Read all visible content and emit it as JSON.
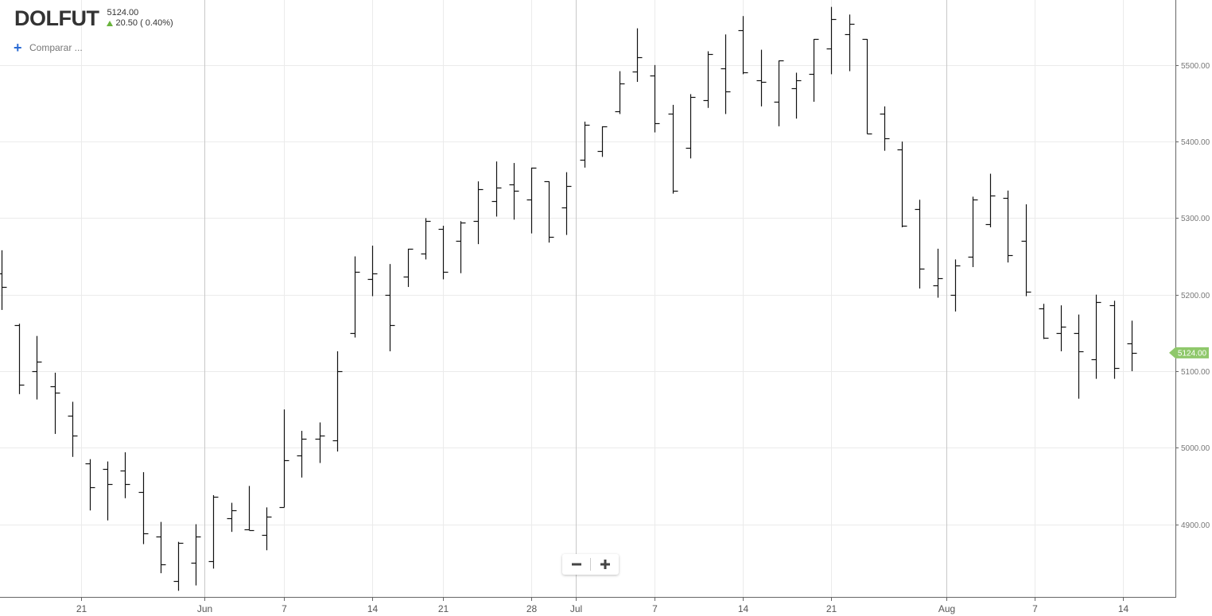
{
  "header": {
    "symbol": "DOLFUT",
    "last_price": "5124.00",
    "change": "20.50 ( 0.40%)",
    "change_direction_icon": "up-arrow-icon",
    "change_color": "#69b33c"
  },
  "compare": {
    "icon": "plus-icon",
    "label": "Comparar ..."
  },
  "zoom": {
    "minus_icon": "minus-icon",
    "plus_icon": "plus-icon"
  },
  "current_price_tag": {
    "label": "5124.00",
    "value": 5124,
    "color": "#8fc86b"
  },
  "chart_data": {
    "type": "ohlc",
    "title": "",
    "xlabel": "",
    "ylabel": "",
    "grid": true,
    "ylim": [
      4805,
      5585
    ],
    "y_ticks": [
      {
        "value": 4900,
        "label": "4900.00"
      },
      {
        "value": 5000,
        "label": "5000.00"
      },
      {
        "value": 5100,
        "label": "5100.00"
      },
      {
        "value": 5200,
        "label": "5200.00"
      },
      {
        "value": 5300,
        "label": "5300.00"
      },
      {
        "value": 5400,
        "label": "5400.00"
      },
      {
        "value": 5500,
        "label": "5500.00"
      }
    ],
    "x_ticks": [
      {
        "index": 4.5,
        "label": "21",
        "major": false
      },
      {
        "index": 11.5,
        "label": "Jun",
        "major": true
      },
      {
        "index": 16,
        "label": "7",
        "major": false
      },
      {
        "index": 21,
        "label": "14",
        "major": false
      },
      {
        "index": 25,
        "label": "21",
        "major": false
      },
      {
        "index": 30,
        "label": "28",
        "major": false
      },
      {
        "index": 32.5,
        "label": "Jul",
        "major": true
      },
      {
        "index": 37,
        "label": "7",
        "major": false
      },
      {
        "index": 42,
        "label": "14",
        "major": false
      },
      {
        "index": 47,
        "label": "21",
        "major": false
      },
      {
        "index": 53.5,
        "label": "Aug",
        "major": true
      },
      {
        "index": 58.5,
        "label": "7",
        "major": false
      },
      {
        "index": 63.5,
        "label": "14",
        "major": false
      }
    ],
    "bars": [
      [
        5228,
        5258,
        5180,
        5210
      ],
      [
        5160,
        5162,
        5070,
        5082
      ],
      [
        5100,
        5146,
        5063,
        5112
      ],
      [
        5080,
        5098,
        5018,
        5072
      ],
      [
        5042,
        5060,
        4988,
        5016
      ],
      [
        4980,
        4985,
        4918,
        4948
      ],
      [
        4972,
        4982,
        4905,
        4952
      ],
      [
        4970,
        4994,
        4934,
        4952
      ],
      [
        4942,
        4968,
        4874,
        4888
      ],
      [
        4884,
        4903,
        4836,
        4848
      ],
      [
        4826,
        4877,
        4813,
        4876
      ],
      [
        4850,
        4900,
        4820,
        4884
      ],
      [
        4852,
        4938,
        4842,
        4936
      ],
      [
        4908,
        4928,
        4890,
        4918
      ],
      [
        4893,
        4950,
        4892,
        4892
      ],
      [
        4886,
        4922,
        4866,
        4910
      ],
      [
        4922,
        5050,
        4922,
        4984
      ],
      [
        4990,
        5022,
        4961,
        5012
      ],
      [
        5012,
        5033,
        4980,
        5016
      ],
      [
        5010,
        5126,
        4995,
        5100
      ],
      [
        5150,
        5250,
        5144,
        5230
      ],
      [
        5220,
        5264,
        5198,
        5228
      ],
      [
        5200,
        5240,
        5126,
        5160
      ],
      [
        5224,
        5260,
        5210,
        5260
      ],
      [
        5254,
        5300,
        5246,
        5296
      ],
      [
        5286,
        5290,
        5220,
        5230
      ],
      [
        5270,
        5296,
        5228,
        5294
      ],
      [
        5296,
        5348,
        5266,
        5338
      ],
      [
        5322,
        5374,
        5302,
        5340
      ],
      [
        5344,
        5372,
        5298,
        5336
      ],
      [
        5324,
        5366,
        5280,
        5366
      ],
      [
        5348,
        5348,
        5268,
        5276
      ],
      [
        5314,
        5360,
        5278,
        5342
      ],
      [
        5376,
        5426,
        5366,
        5422
      ],
      [
        5388,
        5420,
        5380,
        5420
      ],
      [
        5440,
        5492,
        5436,
        5476
      ],
      [
        5492,
        5548,
        5478,
        5510
      ],
      [
        5486,
        5500,
        5412,
        5424
      ],
      [
        5436,
        5448,
        5332,
        5336
      ],
      [
        5392,
        5462,
        5378,
        5458
      ],
      [
        5454,
        5518,
        5444,
        5514
      ],
      [
        5496,
        5540,
        5436,
        5466
      ],
      [
        5546,
        5564,
        5488,
        5490
      ],
      [
        5480,
        5520,
        5446,
        5478
      ],
      [
        5452,
        5506,
        5420,
        5506
      ],
      [
        5470,
        5490,
        5430,
        5480
      ],
      [
        5488,
        5534,
        5452,
        5534
      ],
      [
        5522,
        5576,
        5488,
        5560
      ],
      [
        5540,
        5566,
        5492,
        5554
      ],
      [
        5534,
        5534,
        5410,
        5410
      ],
      [
        5436,
        5446,
        5388,
        5404
      ],
      [
        5390,
        5400,
        5288,
        5290
      ],
      [
        5312,
        5324,
        5208,
        5234
      ],
      [
        5212,
        5260,
        5196,
        5222
      ],
      [
        5200,
        5246,
        5178,
        5238
      ],
      [
        5250,
        5328,
        5236,
        5324
      ],
      [
        5292,
        5358,
        5288,
        5330
      ],
      [
        5326,
        5336,
        5242,
        5252
      ],
      [
        5270,
        5318,
        5198,
        5204
      ],
      [
        5182,
        5188,
        5142,
        5144
      ],
      [
        5150,
        5186,
        5126,
        5158
      ],
      [
        5150,
        5174,
        5064,
        5126
      ],
      [
        5116,
        5200,
        5090,
        5190
      ],
      [
        5186,
        5192,
        5090,
        5104
      ],
      [
        5136,
        5166,
        5100,
        5124
      ]
    ]
  }
}
